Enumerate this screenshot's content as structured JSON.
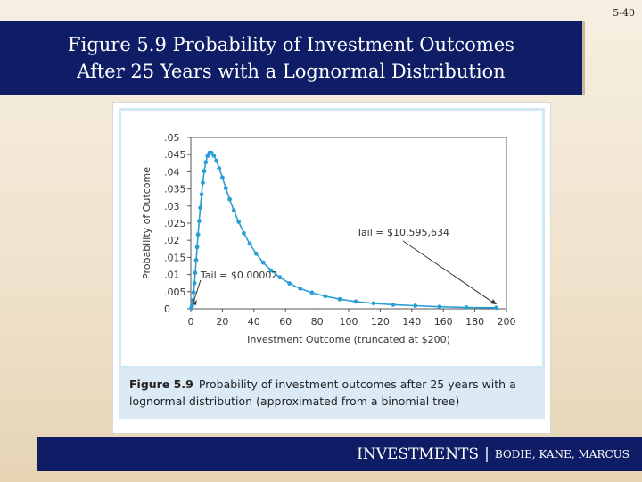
{
  "slide_number": "5-40",
  "title": {
    "line1": "Figure 5.9 Probability of Investment Outcomes",
    "line2": "After 25 Years with a Lognormal Distribution"
  },
  "caption": {
    "label": "Figure 5.9",
    "text": "Probability of investment outcomes after 25 years with a lognormal distribution (approximated from a binomial tree)"
  },
  "footer": {
    "book": "INVESTMENTS",
    "separator": "|",
    "authors": "BODIE, KANE, MARCUS"
  },
  "colors": {
    "title_bg": "#0e1d66",
    "series": "#2a9fd6",
    "caption_bg": "#dbeaf5"
  },
  "chart_data": {
    "type": "line",
    "xlabel": "Investment Outcome (truncated at $200)",
    "ylabel": "Probability of Outcome",
    "xlim": [
      0,
      200
    ],
    "ylim": [
      0,
      0.05
    ],
    "x_ticks": [
      "0",
      "20",
      "40",
      "60",
      "80",
      "100",
      "120",
      "140",
      "160",
      "180",
      "200"
    ],
    "y_ticks": [
      "0",
      ".005",
      ".01",
      ".015",
      ".02",
      ".025",
      ".03",
      ".035",
      ".04",
      ".045",
      ".05"
    ],
    "grid": false,
    "annotations": [
      {
        "text": "Tail = $0.00002",
        "x": 0.5,
        "y": 0.0008
      },
      {
        "text": "Tail = $10,595,634",
        "x": 195,
        "y": 0.0005
      }
    ],
    "series": [
      {
        "x": [
          0.3,
          0.8,
          1.3,
          1.8,
          2.3,
          2.8,
          3.4,
          4.0,
          4.6,
          5.3,
          6.0,
          6.8,
          7.6,
          8.5,
          9.5,
          10.6,
          11.8,
          13.1,
          14.6,
          16.2,
          18.0,
          20.0,
          22.2,
          24.6,
          27.3,
          30.3,
          33.6,
          37.3,
          41.4,
          45.9,
          50.9,
          56.4,
          62.5,
          69.3,
          76.8,
          85.1,
          94.3,
          104.5,
          115.8,
          128.3,
          142.2,
          157.6,
          174.6,
          193.5
        ],
        "y": [
          0.0002,
          0.0009,
          0.0025,
          0.0048,
          0.0075,
          0.0105,
          0.0142,
          0.018,
          0.0217,
          0.0256,
          0.0295,
          0.0334,
          0.0368,
          0.0402,
          0.0428,
          0.0446,
          0.0455,
          0.0455,
          0.0447,
          0.0432,
          0.041,
          0.0383,
          0.0352,
          0.032,
          0.0287,
          0.0254,
          0.0221,
          0.019,
          0.0161,
          0.0135,
          0.0112,
          0.0092,
          0.0074,
          0.0059,
          0.0047,
          0.0037,
          0.0028,
          0.0021,
          0.0016,
          0.0012,
          0.0009,
          0.0006,
          0.0004,
          0.0003
        ]
      }
    ]
  }
}
